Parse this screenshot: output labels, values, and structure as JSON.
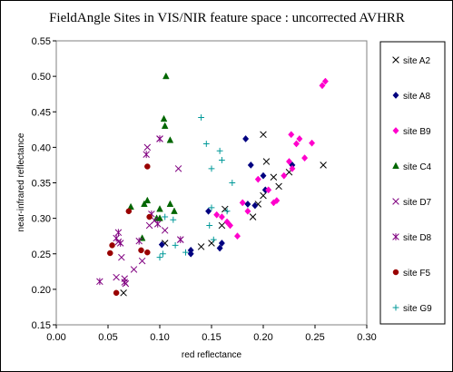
{
  "chart_data": {
    "type": "scatter",
    "title": "FieldAngle Sites in VIS/NIR feature space : uncorrected AVHRR",
    "xlabel": "red reflectance",
    "ylabel": "near-infrared reflectance",
    "xlim": [
      0.0,
      0.3
    ],
    "ylim": [
      0.15,
      0.55
    ],
    "xticks": [
      "0.00",
      "0.05",
      "0.10",
      "0.15",
      "0.20",
      "0.25",
      "0.30"
    ],
    "yticks": [
      "0.15",
      "0.20",
      "0.25",
      "0.30",
      "0.35",
      "0.40",
      "0.45",
      "0.50",
      "0.55"
    ],
    "grid": false,
    "legend_position": "right",
    "series": [
      {
        "name": "site A2",
        "marker": "x",
        "color": "#000000",
        "points": [
          [
            0.065,
            0.195
          ],
          [
            0.105,
            0.265
          ],
          [
            0.14,
            0.26
          ],
          [
            0.15,
            0.265
          ],
          [
            0.16,
            0.29
          ],
          [
            0.163,
            0.313
          ],
          [
            0.19,
            0.302
          ],
          [
            0.195,
            0.32
          ],
          [
            0.2,
            0.332
          ],
          [
            0.203,
            0.38
          ],
          [
            0.21,
            0.358
          ],
          [
            0.215,
            0.345
          ],
          [
            0.225,
            0.365
          ],
          [
            0.2,
            0.418
          ],
          [
            0.258,
            0.375
          ]
        ]
      },
      {
        "name": "site A8",
        "marker": "diamond",
        "color": "#000080",
        "points": [
          [
            0.102,
            0.263
          ],
          [
            0.13,
            0.255
          ],
          [
            0.13,
            0.25
          ],
          [
            0.147,
            0.31
          ],
          [
            0.158,
            0.258
          ],
          [
            0.16,
            0.265
          ],
          [
            0.185,
            0.32
          ],
          [
            0.188,
            0.375
          ],
          [
            0.192,
            0.318
          ],
          [
            0.2,
            0.36
          ],
          [
            0.202,
            0.34
          ],
          [
            0.183,
            0.412
          ],
          [
            0.228,
            0.375
          ]
        ]
      },
      {
        "name": "site B9",
        "marker": "diamond",
        "color": "#ff00cc",
        "points": [
          [
            0.155,
            0.305
          ],
          [
            0.16,
            0.302
          ],
          [
            0.165,
            0.295
          ],
          [
            0.168,
            0.29
          ],
          [
            0.175,
            0.275
          ],
          [
            0.18,
            0.322
          ],
          [
            0.185,
            0.31
          ],
          [
            0.195,
            0.355
          ],
          [
            0.205,
            0.34
          ],
          [
            0.21,
            0.322
          ],
          [
            0.213,
            0.325
          ],
          [
            0.22,
            0.36
          ],
          [
            0.225,
            0.38
          ],
          [
            0.228,
            0.37
          ],
          [
            0.227,
            0.418
          ],
          [
            0.232,
            0.405
          ],
          [
            0.235,
            0.412
          ],
          [
            0.24,
            0.385
          ],
          [
            0.247,
            0.406
          ],
          [
            0.257,
            0.487
          ],
          [
            0.26,
            0.493
          ]
        ]
      },
      {
        "name": "site C4",
        "marker": "triangle",
        "color": "#006600",
        "points": [
          [
            0.072,
            0.316
          ],
          [
            0.083,
            0.272
          ],
          [
            0.085,
            0.32
          ],
          [
            0.088,
            0.325
          ],
          [
            0.097,
            0.3
          ],
          [
            0.1,
            0.313
          ],
          [
            0.1,
            0.3
          ],
          [
            0.104,
            0.44
          ],
          [
            0.105,
            0.43
          ],
          [
            0.11,
            0.41
          ],
          [
            0.11,
            0.32
          ],
          [
            0.114,
            0.31
          ],
          [
            0.106,
            0.5
          ]
        ]
      },
      {
        "name": "site D7",
        "marker": "x",
        "color": "#800080",
        "points": [
          [
            0.058,
            0.217
          ],
          [
            0.06,
            0.267
          ],
          [
            0.063,
            0.245
          ],
          [
            0.066,
            0.215
          ],
          [
            0.067,
            0.208
          ],
          [
            0.075,
            0.228
          ],
          [
            0.083,
            0.24
          ],
          [
            0.09,
            0.29
          ],
          [
            0.095,
            0.297
          ],
          [
            0.1,
            0.412
          ],
          [
            0.105,
            0.283
          ],
          [
            0.118,
            0.37
          ],
          [
            0.12,
            0.27
          ],
          [
            0.088,
            0.4
          ]
        ]
      },
      {
        "name": "site D8",
        "marker": "asterisk",
        "color": "#800080",
        "points": [
          [
            0.042,
            0.211
          ],
          [
            0.058,
            0.272
          ],
          [
            0.06,
            0.28
          ],
          [
            0.062,
            0.265
          ],
          [
            0.066,
            0.21
          ],
          [
            0.08,
            0.268
          ],
          [
            0.092,
            0.306
          ],
          [
            0.098,
            0.292
          ],
          [
            0.1,
            0.412
          ],
          [
            0.087,
            0.39
          ],
          [
            0.12,
            0.27
          ]
        ]
      },
      {
        "name": "site F5",
        "marker": "circle",
        "color": "#990000",
        "points": [
          [
            0.052,
            0.251
          ],
          [
            0.054,
            0.262
          ],
          [
            0.058,
            0.195
          ],
          [
            0.07,
            0.31
          ],
          [
            0.082,
            0.255
          ],
          [
            0.088,
            0.252
          ],
          [
            0.088,
            0.373
          ],
          [
            0.09,
            0.302
          ]
        ]
      },
      {
        "name": "site G9",
        "marker": "plus",
        "color": "#009999",
        "points": [
          [
            0.1,
            0.245
          ],
          [
            0.103,
            0.25
          ],
          [
            0.105,
            0.302
          ],
          [
            0.113,
            0.298
          ],
          [
            0.115,
            0.262
          ],
          [
            0.125,
            0.252
          ],
          [
            0.14,
            0.442
          ],
          [
            0.145,
            0.405
          ],
          [
            0.15,
            0.37
          ],
          [
            0.15,
            0.315
          ],
          [
            0.152,
            0.27
          ],
          [
            0.158,
            0.395
          ],
          [
            0.16,
            0.382
          ],
          [
            0.165,
            0.31
          ],
          [
            0.17,
            0.35
          ],
          [
            0.148,
            0.29
          ]
        ]
      }
    ]
  }
}
